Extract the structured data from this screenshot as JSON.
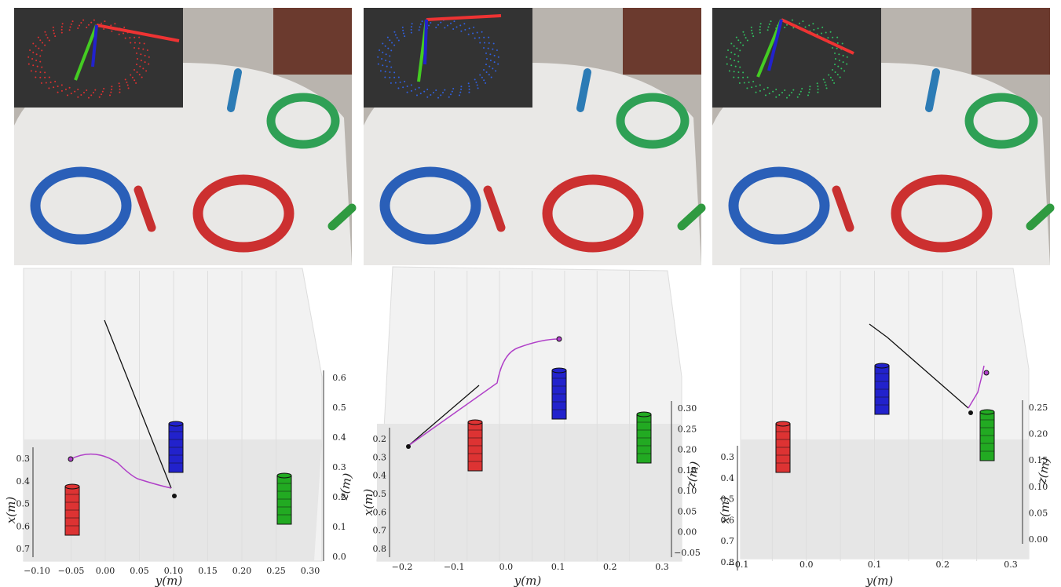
{
  "panels": [
    {
      "y_label": "y(m)",
      "x_label": "x(m)",
      "z_label": "z(m)",
      "y_ticks": [
        "−0.10",
        "−0.05",
        "0.00",
        "0.05",
        "0.10",
        "0.15",
        "0.20",
        "0.25",
        "0.30"
      ],
      "x_ticks": [
        "0.3",
        "0.4",
        "0.5",
        "0.6",
        "0.7"
      ],
      "z_ticks": [
        "0.0",
        "0.1",
        "0.2",
        "0.3",
        "0.4",
        "0.5",
        "0.6"
      ]
    },
    {
      "y_label": "y(m)",
      "x_label": "x(m)",
      "z_label": "z(m)",
      "y_ticks": [
        "−0.2",
        "−0.1",
        "0.0",
        "0.1",
        "0.2",
        "0.3"
      ],
      "x_ticks": [
        "0.2",
        "0.3",
        "0.4",
        "0.5",
        "0.6",
        "0.7",
        "0.8"
      ],
      "z_ticks": [
        "−0.05",
        "0.00",
        "0.05",
        "0.10",
        "0.15",
        "0.20",
        "0.25",
        "0.30"
      ]
    },
    {
      "y_label": "y(m)",
      "x_label": "x(m)",
      "z_label": "z(m)",
      "y_ticks": [
        "−0.1",
        "0.0",
        "0.1",
        "0.2",
        "0.3"
      ],
      "x_ticks": [
        "0.3",
        "0.4",
        "0.5",
        "0.6",
        "0.7",
        "0.8"
      ],
      "z_ticks": [
        "0.00",
        "0.05",
        "0.10",
        "0.15",
        "0.20",
        "0.25"
      ]
    }
  ]
}
